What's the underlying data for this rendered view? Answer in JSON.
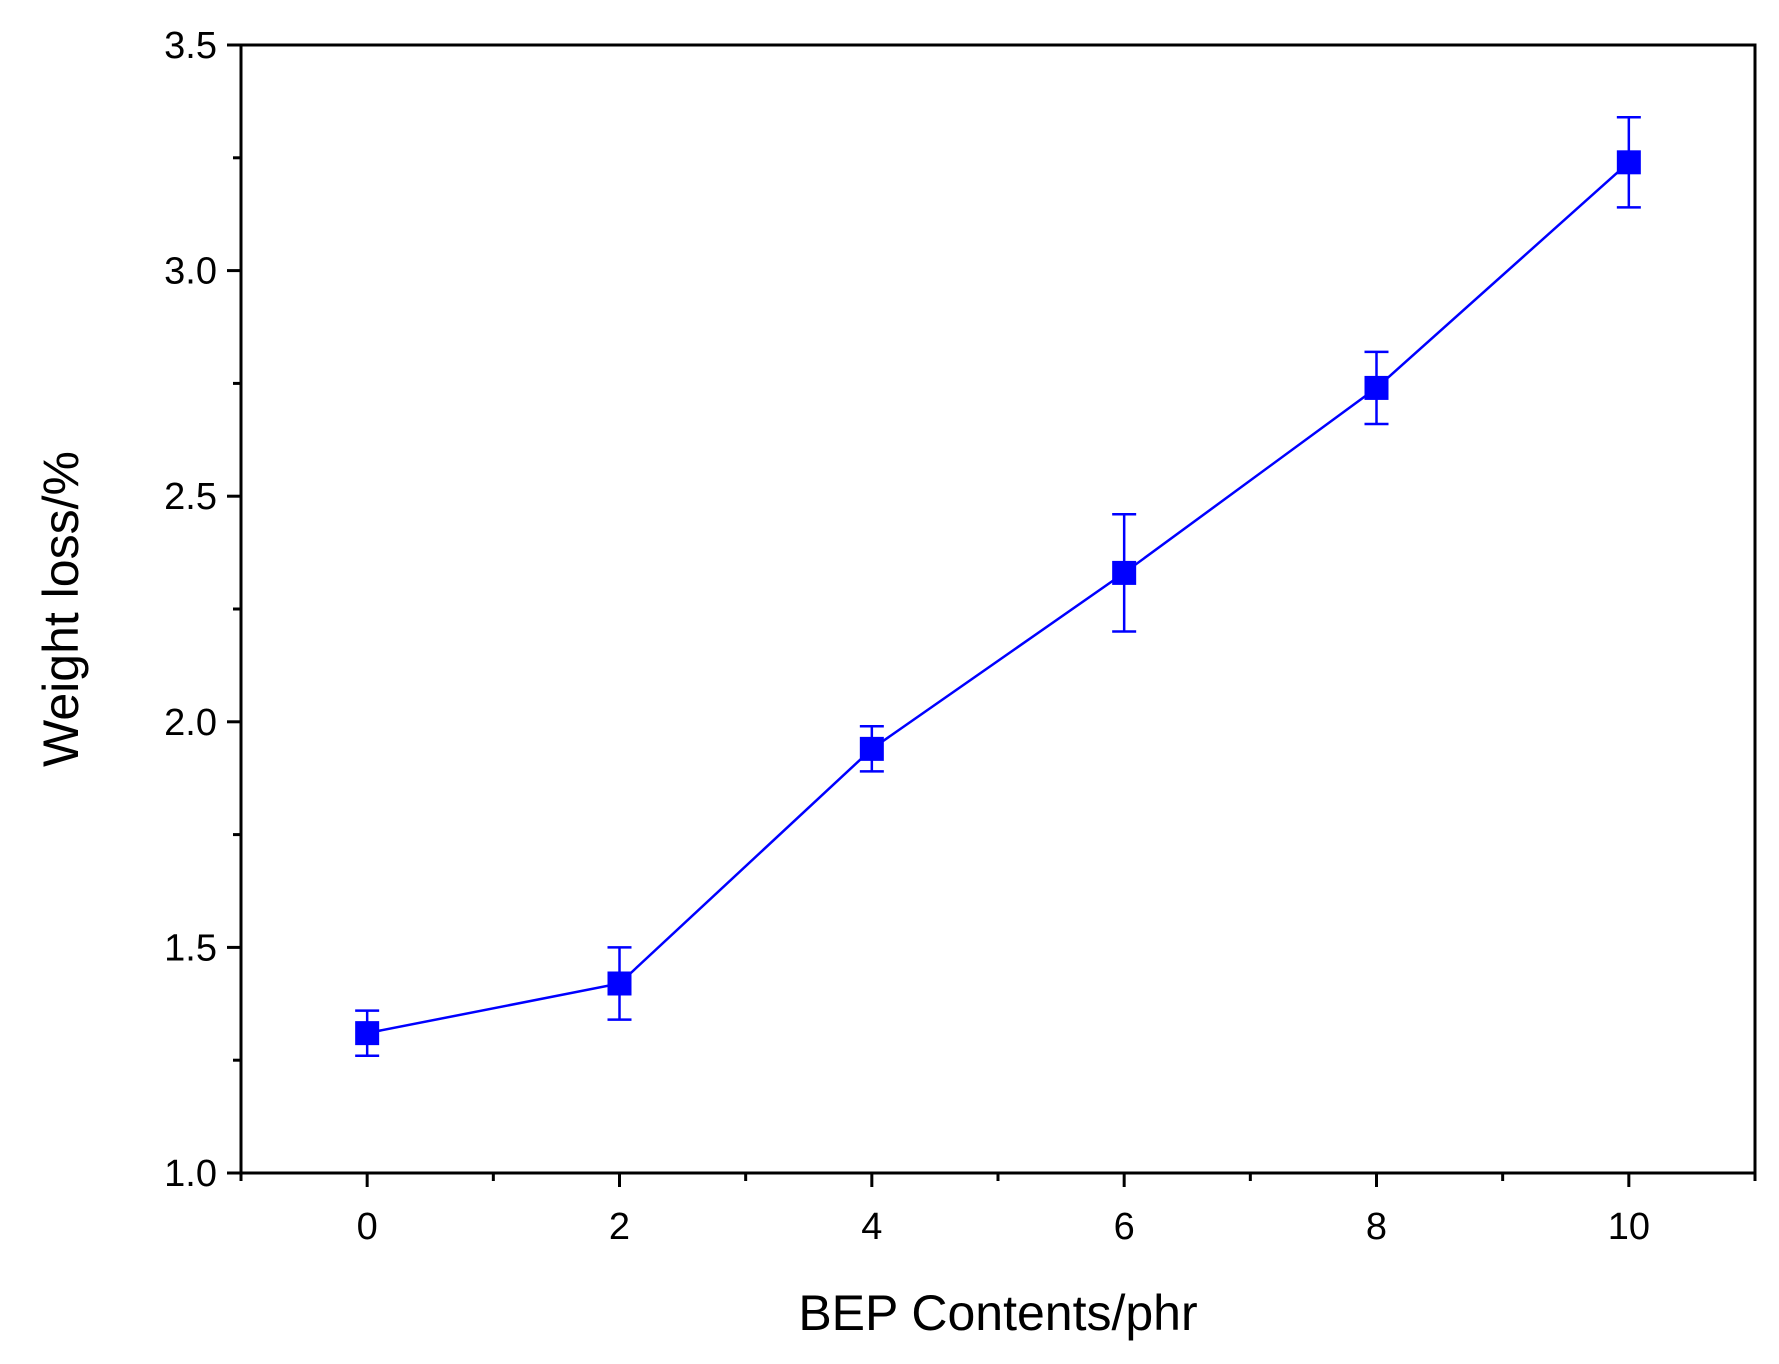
{
  "chart_data": {
    "type": "line",
    "title": "",
    "xlabel": "BEP Contents/phr",
    "ylabel": "Weight loss/%",
    "xlim": [
      -1,
      11
    ],
    "ylim": [
      1.0,
      3.5
    ],
    "x_ticks": [
      "0",
      "2",
      "4",
      "6",
      "8",
      "10"
    ],
    "y_ticks": [
      "1.0",
      "1.5",
      "2.0",
      "2.5",
      "3.0",
      "3.5"
    ],
    "grid": false,
    "legend": "none",
    "marker": "square",
    "color": "#0000ff",
    "series": [
      {
        "x": [
          0,
          2,
          4,
          6,
          8,
          10
        ],
        "values": [
          1.31,
          1.42,
          1.94,
          2.33,
          2.74,
          3.24
        ],
        "error": [
          0.05,
          0.08,
          0.05,
          0.13,
          0.08,
          0.1
        ]
      }
    ]
  }
}
